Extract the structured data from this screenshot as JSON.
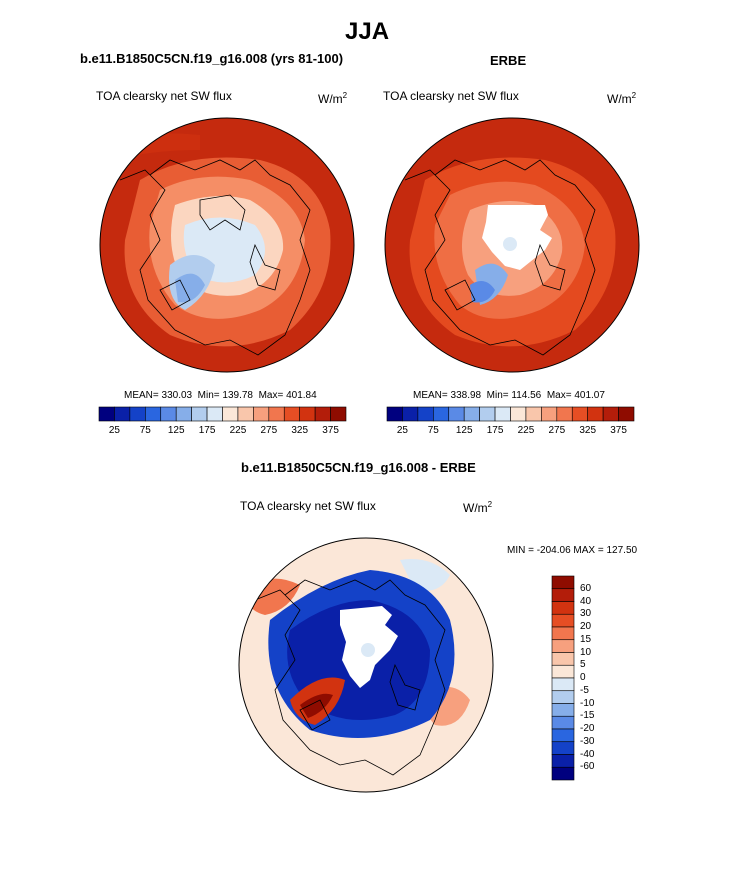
{
  "figure": {
    "title": "JJA"
  },
  "panels": [
    {
      "case_label": "b.e11.B1850C5CN.f19_g16.008 (yrs 81-100)",
      "variable": "TOA clearsky net SW flux",
      "units_base": "W/m",
      "units_exp": "2",
      "stats": {
        "mean": "MEAN= 330.03",
        "min": "Min= 139.78",
        "max": "Max= 401.84"
      }
    },
    {
      "case_label": "ERBE",
      "variable": "TOA clearsky net SW flux",
      "units_base": "W/m",
      "units_exp": "2",
      "stats": {
        "mean": "MEAN= 338.98",
        "min": "Min= 114.56",
        "max": "Max= 401.07"
      }
    },
    {
      "case_label": "b.e11.B1850C5CN.f19_g16.008 - ERBE",
      "variable": "TOA clearsky net SW flux",
      "units_base": "W/m",
      "units_exp": "2",
      "stats": {
        "minmax": "MIN = -204.06 MAX = 127.50"
      }
    }
  ],
  "colorbars": {
    "abs": {
      "colors": [
        "#00007f",
        "#0a20a8",
        "#1442c8",
        "#2a66e0",
        "#5a8ae6",
        "#86aee9",
        "#b2cdee",
        "#dbe9f6",
        "#fbe7d8",
        "#f9c6ab",
        "#f7a07e",
        "#f1764e",
        "#e64e24",
        "#d23310",
        "#b31d0a",
        "#8f0c00"
      ],
      "tick_labels": [
        "25",
        "75",
        "125",
        "175",
        "225",
        "275",
        "325",
        "375"
      ]
    },
    "diff": {
      "colors": [
        "#8f0c00",
        "#b31d0a",
        "#d23310",
        "#e64e24",
        "#f1764e",
        "#f7a07e",
        "#f9c6ab",
        "#fbe7d8",
        "#dbe9f6",
        "#b2cdee",
        "#86aee9",
        "#5a8ae6",
        "#2a66e0",
        "#1442c8",
        "#0a20a8",
        "#00007f"
      ],
      "tick_labels": [
        "60",
        "40",
        "30",
        "20",
        "15",
        "10",
        "5",
        "0",
        "-5",
        "-10",
        "-15",
        "-20",
        "-30",
        "-40",
        "-60"
      ]
    }
  }
}
